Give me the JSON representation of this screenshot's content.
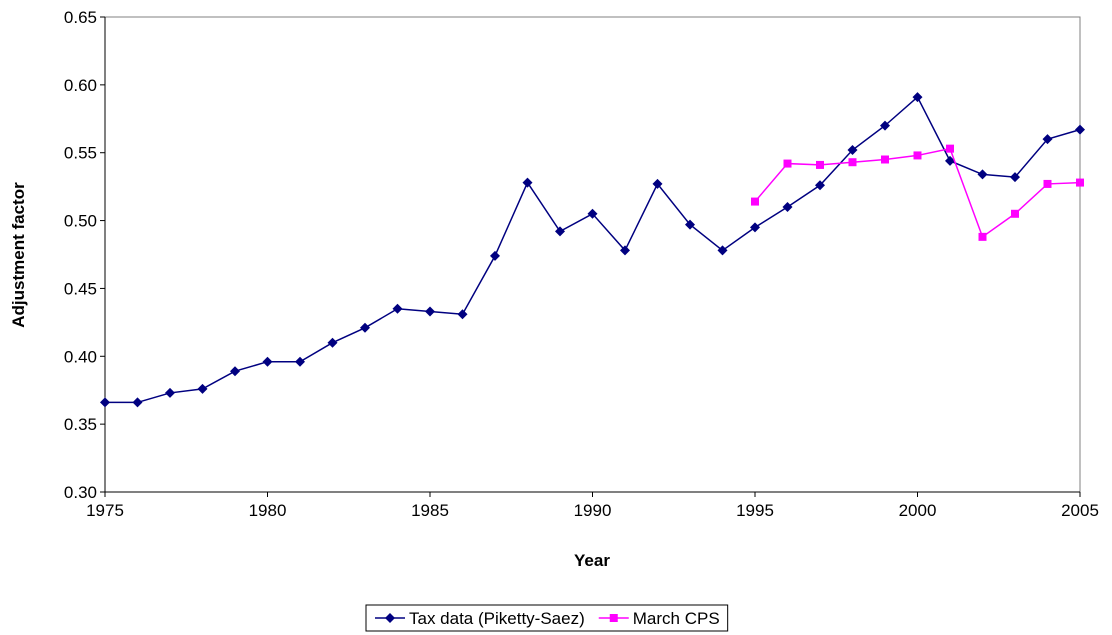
{
  "chart_data": {
    "type": "line",
    "x_label": "Year",
    "y_label": "Adjustment factor",
    "x": [
      1975,
      1976,
      1977,
      1978,
      1979,
      1980,
      1981,
      1982,
      1983,
      1984,
      1985,
      1986,
      1987,
      1988,
      1989,
      1990,
      1991,
      1992,
      1993,
      1994,
      1995,
      1996,
      1997,
      1998,
      1999,
      2000,
      2001,
      2002,
      2003,
      2004,
      2005
    ],
    "series": [
      {
        "name": "Tax data (Piketty-Saez)",
        "color": "#000080",
        "marker": "diamond",
        "values": [
          0.366,
          0.366,
          0.373,
          0.376,
          0.389,
          0.396,
          0.396,
          0.41,
          0.421,
          0.435,
          0.433,
          0.431,
          0.474,
          0.528,
          0.492,
          0.505,
          0.478,
          0.527,
          0.497,
          0.478,
          0.495,
          0.51,
          0.526,
          0.552,
          0.57,
          0.591,
          0.544,
          0.534,
          0.532,
          0.56,
          0.567
        ]
      },
      {
        "name": "March CPS",
        "color": "#ff00ff",
        "marker": "square",
        "values": [
          null,
          null,
          null,
          null,
          null,
          null,
          null,
          null,
          null,
          null,
          null,
          null,
          null,
          null,
          null,
          null,
          null,
          null,
          null,
          null,
          0.514,
          0.542,
          0.541,
          0.543,
          0.545,
          0.548,
          0.553,
          0.488,
          0.505,
          0.527,
          0.528
        ]
      }
    ],
    "xlim": [
      1975,
      2005
    ],
    "xticks": [
      1975,
      1980,
      1985,
      1990,
      1995,
      2000,
      2005
    ],
    "ylim": [
      0.3,
      0.65
    ],
    "yticks": [
      {
        "value": 0.3,
        "label": "0.30"
      },
      {
        "value": 0.35,
        "label": "0.35"
      },
      {
        "value": 0.4,
        "label": "0.40"
      },
      {
        "value": 0.45,
        "label": "0.45"
      },
      {
        "value": 0.5,
        "label": "0.50"
      },
      {
        "value": 0.55,
        "label": "0.55"
      },
      {
        "value": 0.6,
        "label": "0.60"
      },
      {
        "value": 0.65,
        "label": "0.65"
      }
    ],
    "grid": false,
    "legend": "bottom"
  }
}
